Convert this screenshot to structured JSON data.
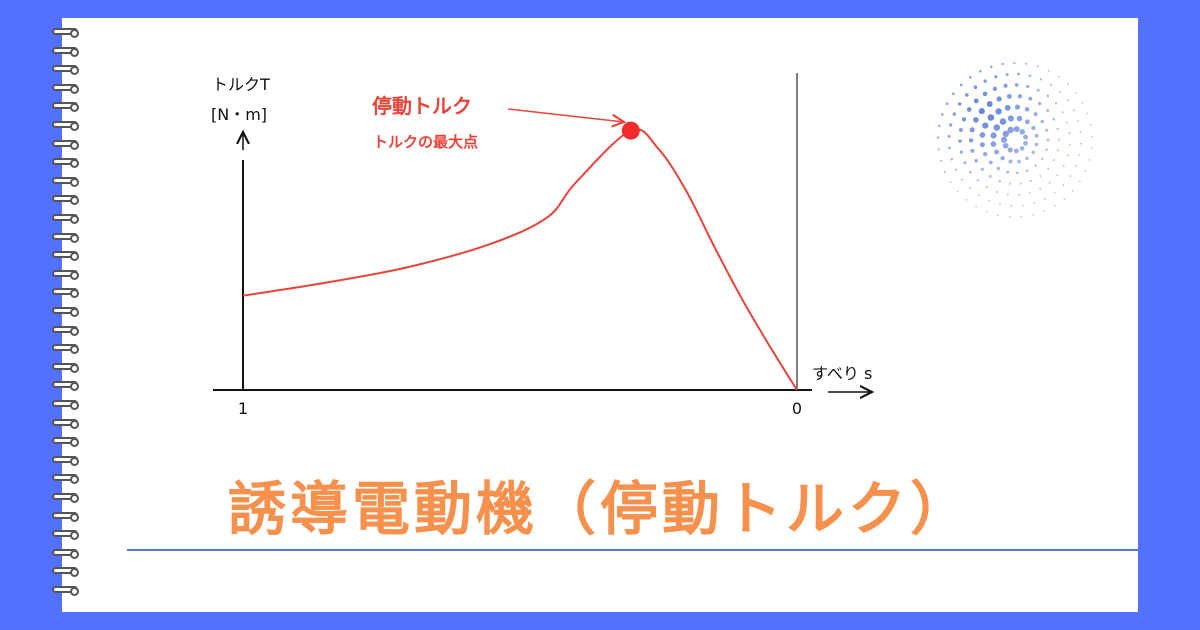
{
  "page": {
    "title": "誘導電動機（停動トルク）"
  },
  "colors": {
    "background": "#5470ff",
    "card": "#ffffff",
    "curve": "#e8443a",
    "title": "#f5904d",
    "rule": "#5b7bd8",
    "dots": "#5b7bd8"
  },
  "chart_data": {
    "type": "line",
    "title": "",
    "ylabel_line1": "トルクT",
    "ylabel_line2": "[N・m]",
    "xlabel": "すべり s",
    "x_reversed": true,
    "xlim": [
      1,
      0
    ],
    "ylim": [
      0,
      1
    ],
    "x_ticks": [
      "1",
      "0"
    ],
    "grid": false,
    "series": [
      {
        "x": [
          1.0,
          0.85,
          0.7,
          0.55,
          0.45,
          0.4,
          0.3,
          0.25,
          0.2,
          0.15,
          0.1,
          0.05,
          0.0
        ],
        "y": [
          0.36,
          0.41,
          0.47,
          0.56,
          0.66,
          0.79,
          0.99,
          0.92,
          0.76,
          0.55,
          0.35,
          0.17,
          0.0
        ]
      }
    ],
    "annotation": {
      "label": "停動トルク",
      "sublabel": "トルクの最大点",
      "x": 0.3,
      "y": 0.99
    }
  }
}
